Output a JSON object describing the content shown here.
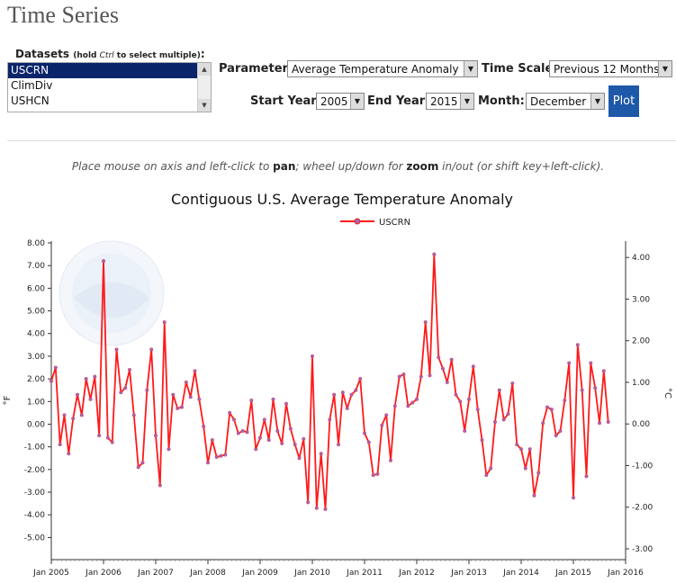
{
  "page": {
    "title": "Time Series"
  },
  "datasets": {
    "label": "Datasets",
    "label_hint_open": "(hold ",
    "label_hint_key": "Ctrl",
    "label_hint_close": " to select multiple)",
    "label_colon": ":",
    "options": [
      "USCRN",
      "ClimDiv",
      "USHCN"
    ],
    "selected": "USCRN"
  },
  "controls": {
    "parameter_label": "Parameter:",
    "parameter_value": "Average Temperature Anomaly",
    "timescale_label": "Time Scale:",
    "timescale_value": "Previous 12 Months",
    "start_year_label": "Start Year:",
    "start_year_value": "2005",
    "end_year_label": "End Year:",
    "end_year_value": "2015",
    "month_label": "Month:",
    "month_value": "December",
    "plot_button": "Plot"
  },
  "instructions": {
    "part1": "Place mouse on axis and left-click to ",
    "pan": "pan",
    "part2": "; wheel up/down for ",
    "zoom": "zoom",
    "part3": " in/out (or shift key+left-click)."
  },
  "colors": {
    "line": "#ff1a1a",
    "marker": "#9a6abf",
    "button": "#1e58a8"
  },
  "chart_data": {
    "type": "line",
    "title": "Contiguous U.S. Average Temperature Anomaly",
    "legend": [
      "USCRN"
    ],
    "legend_position": "top-center",
    "ylabel": "°F",
    "y2label": "°C",
    "ylim": [
      -5.5,
      8.0
    ],
    "y2lim": [
      -3.0,
      4.35
    ],
    "yticks": [
      "8.00",
      "7.00",
      "6.00",
      "5.00",
      "4.00",
      "3.00",
      "2.00",
      "1.00",
      "0.00",
      "-1.00",
      "-2.00",
      "-3.00",
      "-4.00",
      "-5.00"
    ],
    "y2ticks": [
      "4.00",
      "3.00",
      "2.00",
      "1.00",
      "0.00",
      "-1.00",
      "-2.00",
      "-3.00"
    ],
    "xlim": [
      2005,
      2016
    ],
    "xticks": [
      "Jan 2005",
      "Jan 2006",
      "Jan 2007",
      "Jan 2008",
      "Jan 2009",
      "Jan 2010",
      "Jan 2011",
      "Jan 2012",
      "Jan 2013",
      "Jan 2014",
      "Jan 2015",
      "Jan 2016"
    ],
    "series": [
      {
        "name": "USCRN",
        "values": [
          1.9,
          2.5,
          -0.9,
          0.4,
          -1.3,
          0.25,
          1.3,
          0.4,
          2.0,
          1.1,
          2.1,
          -0.5,
          7.2,
          -0.6,
          -0.8,
          3.3,
          1.4,
          1.6,
          2.4,
          0.4,
          -1.9,
          -1.7,
          1.5,
          3.3,
          -0.5,
          -2.7,
          4.5,
          -1.1,
          1.3,
          0.7,
          0.75,
          1.85,
          1.2,
          2.35,
          1.1,
          -0.1,
          -1.7,
          -0.7,
          -1.45,
          -1.4,
          -1.35,
          0.5,
          0.2,
          -0.4,
          -0.3,
          -0.35,
          1.05,
          -1.1,
          -0.6,
          0.2,
          -0.7,
          1.1,
          -0.3,
          -0.85,
          0.9,
          -0.2,
          -0.9,
          -1.5,
          -0.65,
          -3.45,
          3.0,
          -3.7,
          -1.3,
          -3.75,
          0.2,
          1.3,
          -0.9,
          1.4,
          0.7,
          1.3,
          1.5,
          2.0,
          -0.4,
          -0.8,
          -2.25,
          -2.2,
          -0.05,
          0.4,
          -1.6,
          0.8,
          2.1,
          2.2,
          0.8,
          0.95,
          1.1,
          2.1,
          4.5,
          2.15,
          7.5,
          2.95,
          2.45,
          1.85,
          2.85,
          1.3,
          1.0,
          -0.3,
          1.1,
          2.55,
          0.65,
          -0.7,
          -2.25,
          -1.95,
          0.1,
          1.5,
          0.2,
          0.45,
          1.8,
          -0.9,
          -1.1,
          -1.95,
          -1.1,
          -3.15,
          -2.15,
          0.05,
          0.75,
          0.65,
          -0.5,
          -0.3,
          1.05,
          2.7,
          -3.25,
          3.5,
          1.5,
          -2.3,
          2.7,
          1.6,
          0.05,
          2.35,
          0.1
        ]
      }
    ]
  }
}
